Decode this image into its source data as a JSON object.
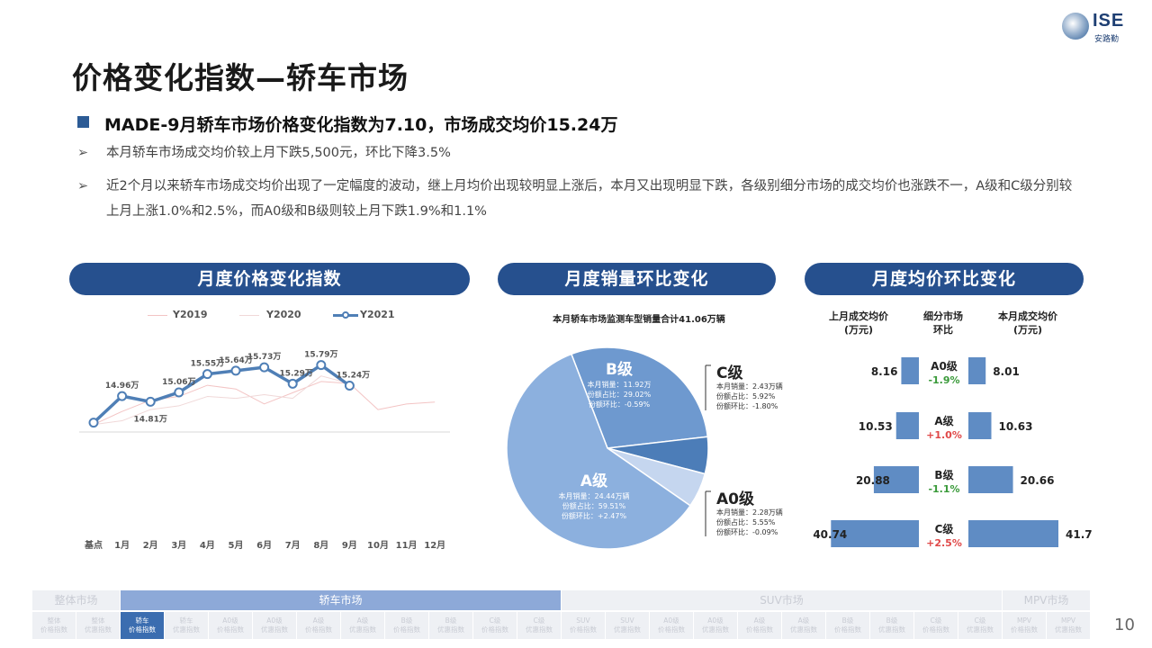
{
  "logo": {
    "mark": "ISE",
    "sub": "安路勤"
  },
  "title": "价格变化指数—轿车市场",
  "headline": "MADE-9月轿车市场价格变化指数为7.10，市场成交均价15.24万",
  "bullets": [
    "本月轿车市场成交均价较上月下跌5,500元，环比下降3.5%",
    "近2个月以来轿车市场成交均价出现了一定幅度的波动，继上月均价出现较明显上涨后，本月又出现明显下跌，各级别细分市场的成交均价也涨跌不一，A级和C级分别较上月上涨1.0%和2.5%，而A0级和B级则较上月下跌1.9%和1.1%"
  ],
  "arrow_glyph": "➢",
  "panels": {
    "index": "月度价格变化指数",
    "sales": "月度销量环比变化",
    "price": "月度均价环比变化"
  },
  "colors": {
    "primary": "#26508e",
    "y2019": "#f3c4c4",
    "y2020": "#f0d8d8",
    "y2021": "#4f7fb6",
    "pie_a": "#8cb0de",
    "pie_b": "#6e99cf",
    "pie_c": "#4c7db8",
    "pie_a0": "#c5d6ef",
    "bar": "#5f8cc4",
    "up": "#e04848",
    "down": "#3a9a3a"
  },
  "chart_data": [
    {
      "type": "line",
      "categories": [
        "基点",
        "1月",
        "2月",
        "3月",
        "4月",
        "5月",
        "6月",
        "7月",
        "8月",
        "9月",
        "10月",
        "11月",
        "12月"
      ],
      "series": [
        {
          "name": "Y2019",
          "values": [
            14.2,
            14.55,
            14.85,
            14.95,
            15.25,
            15.15,
            14.75,
            15.05,
            15.35,
            15.3,
            14.6,
            14.75,
            14.8
          ]
        },
        {
          "name": "Y2020",
          "values": [
            14.2,
            14.3,
            14.6,
            14.7,
            14.95,
            14.9,
            15.0,
            14.9,
            15.5,
            15.3,
            null,
            null,
            null
          ]
        },
        {
          "name": "Y2021",
          "values": [
            14.25,
            14.96,
            14.81,
            15.06,
            15.55,
            15.64,
            15.73,
            15.29,
            15.79,
            15.24,
            null,
            null,
            null
          ]
        }
      ],
      "data_labels": [
        "",
        "14.96万",
        "14.81万",
        "15.06万",
        "15.55万",
        "15.64万",
        "15.73万",
        "15.29万",
        "15.79万",
        "15.24万",
        "",
        "",
        ""
      ],
      "ylim": [
        14.0,
        16.6
      ],
      "legend": "top"
    },
    {
      "type": "pie",
      "title": "本月轿车市场监测车型销量合计41.06万辆",
      "slices": [
        {
          "label": "B级",
          "value": 29.02,
          "lines": [
            "本月销量：11.92万",
            "份额占比：29.02%",
            "份额环比：-0.59%"
          ]
        },
        {
          "label": "C级",
          "value": 5.92,
          "lines": [
            "本月销量：2.43万辆",
            "份额占比：5.92%",
            "份额环比：-1.80%"
          ]
        },
        {
          "label": "A0级",
          "value": 5.55,
          "lines": [
            "本月销量：2.28万辆",
            "份额占比：5.55%",
            "份额环比：-0.09%"
          ]
        },
        {
          "label": "A级",
          "value": 59.51,
          "lines": [
            "本月销量：24.44万辆",
            "份额占比：59.51%",
            "份额环比：+2.47%"
          ]
        }
      ]
    },
    {
      "type": "bar",
      "headers": {
        "left": [
          "上月成交均价",
          "(万元)"
        ],
        "mid": [
          "细分市场",
          "环比"
        ],
        "right": [
          "本月成交均价",
          "(万元)"
        ]
      },
      "rows": [
        {
          "segment": "A0级",
          "change": "-1.9%",
          "dir": "down",
          "prev": 8.16,
          "curr": 8.01
        },
        {
          "segment": "A级",
          "change": "+1.0%",
          "dir": "up",
          "prev": 10.53,
          "curr": 10.63
        },
        {
          "segment": "B级",
          "change": "-1.1%",
          "dir": "down",
          "prev": 20.88,
          "curr": 20.66
        },
        {
          "segment": "C级",
          "change": "+2.5%",
          "dir": "up",
          "prev": 40.74,
          "curr": 41.7
        }
      ],
      "xmax": 41.7
    }
  ],
  "nav": {
    "sections": [
      {
        "label": "整体市场",
        "active": false,
        "span": 2
      },
      {
        "label": "轿车市场",
        "active": true,
        "span": 10
      },
      {
        "label": "SUV市场",
        "active": false,
        "span": 10
      },
      {
        "label": "MPV市场",
        "active": false,
        "span": 2
      }
    ],
    "cells": [
      [
        "整体",
        "价格指数"
      ],
      [
        "整体",
        "优惠指数"
      ],
      [
        "轿车",
        "价格指数"
      ],
      [
        "轿车",
        "优惠指数"
      ],
      [
        "A0级",
        "价格指数"
      ],
      [
        "A0级",
        "优惠指数"
      ],
      [
        "A级",
        "价格指数"
      ],
      [
        "A级",
        "优惠指数"
      ],
      [
        "B级",
        "价格指数"
      ],
      [
        "B级",
        "优惠指数"
      ],
      [
        "C级",
        "价格指数"
      ],
      [
        "C级",
        "优惠指数"
      ],
      [
        "SUV",
        "价格指数"
      ],
      [
        "SUV",
        "优惠指数"
      ],
      [
        "A0级",
        "价格指数"
      ],
      [
        "A0级",
        "优惠指数"
      ],
      [
        "A级",
        "价格指数"
      ],
      [
        "A级",
        "优惠指数"
      ],
      [
        "B级",
        "价格指数"
      ],
      [
        "B级",
        "优惠指数"
      ],
      [
        "C级",
        "价格指数"
      ],
      [
        "C级",
        "优惠指数"
      ],
      [
        "MPV",
        "价格指数"
      ],
      [
        "MPV",
        "优惠指数"
      ]
    ],
    "active_cell": 2
  },
  "page_number": "10"
}
